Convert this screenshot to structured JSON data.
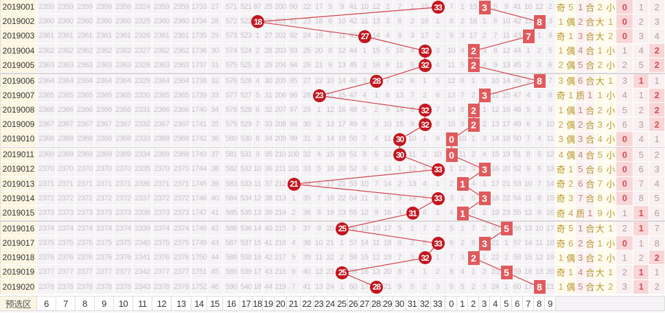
{
  "colors": {
    "ball": "#c4161f",
    "digit_hit": "#e05a5c",
    "line": "#d2404c",
    "miss_text": "#cbc2cb"
  },
  "num_cols": [
    "6",
    "7",
    "8",
    "9",
    "10",
    "11",
    "12",
    "13",
    "14",
    "15",
    "16",
    "17",
    "18",
    "19",
    "20",
    "21",
    "22",
    "23",
    "24",
    "25",
    "26",
    "27",
    "28",
    "29",
    "30",
    "31",
    "32",
    "33"
  ],
  "digit_cols": [
    "0",
    "1",
    "2",
    "3",
    "4",
    "5",
    "6",
    "7",
    "8",
    "9"
  ],
  "rows": [
    {
      "issue": "2019001",
      "hit": "33",
      "n": [
        "2359",
        "2359",
        "2359",
        "2359",
        "2359",
        "2324",
        "2359",
        "2359",
        "1733",
        "27",
        "571",
        "521",
        "87",
        "25",
        "200",
        "90",
        "22",
        "17",
        "5",
        "9",
        "41",
        "10",
        "12",
        "2",
        "7",
        "1",
        "15",
        "33"
      ],
      "dhit": "3",
      "d": [
        "7",
        "1",
        "15",
        "3",
        "5",
        "9",
        "41",
        "10",
        "12",
        "2"
      ],
      "s": [
        "奇",
        "5",
        "1",
        "合",
        "2",
        "小"
      ],
      "road": [
        "0",
        "1",
        "2"
      ],
      "rh": 0
    },
    {
      "issue": "2019002",
      "hit": "18",
      "n": [
        "2360",
        "2360",
        "2360",
        "2360",
        "2360",
        "2325",
        "2360",
        "2360",
        "1734",
        "28",
        "572",
        "522",
        "18",
        "26",
        "201",
        "91",
        "23",
        "18",
        "6",
        "10",
        "42",
        "11",
        "13",
        "3",
        "8",
        "2",
        "16",
        "1"
      ],
      "dhit": "8",
      "d": [
        "8",
        "2",
        "16",
        "1",
        "6",
        "10",
        "42",
        "11",
        "8",
        "3"
      ],
      "s": [
        "1",
        "偶",
        "2",
        "合",
        "大",
        "1"
      ],
      "road": [
        "0",
        "2",
        "3"
      ],
      "rh": 0
    },
    {
      "issue": "2019003",
      "hit": "27",
      "n": [
        "2361",
        "2361",
        "2361",
        "2361",
        "2361",
        "2326",
        "2361",
        "2361",
        "1735",
        "29",
        "573",
        "523",
        "1",
        "27",
        "202",
        "92",
        "24",
        "19",
        "7",
        "11",
        "43",
        "27",
        "14",
        "4",
        "9",
        "3",
        "17",
        "2"
      ],
      "dhit": "7",
      "d": [
        "9",
        "3",
        "17",
        "2",
        "7",
        "11",
        "43",
        "7",
        "1",
        "4"
      ],
      "s": [
        "奇",
        "1",
        "3",
        "合",
        "大",
        "2"
      ],
      "road": [
        "0",
        "3",
        "4"
      ],
      "rh": 0
    },
    {
      "issue": "2019004",
      "hit": "32",
      "n": [
        "2362",
        "2362",
        "2362",
        "2362",
        "2362",
        "2327",
        "2362",
        "2362",
        "1736",
        "30",
        "574",
        "524",
        "2",
        "28",
        "203",
        "93",
        "25",
        "20",
        "8",
        "12",
        "44",
        "1",
        "15",
        "5",
        "10",
        "4",
        "32",
        "3"
      ],
      "dhit": "2",
      "d": [
        "10",
        "4",
        "2",
        "3",
        "8",
        "12",
        "44",
        "1",
        "2",
        "5"
      ],
      "s": [
        "1",
        "偶",
        "4",
        "合",
        "1",
        "小"
      ],
      "road": [
        "1",
        "4",
        "2"
      ],
      "rh": 2
    },
    {
      "issue": "2019005",
      "hit": "32",
      "n": [
        "2363",
        "2363",
        "2363",
        "2363",
        "2363",
        "2328",
        "2363",
        "2363",
        "1737",
        "31",
        "575",
        "525",
        "3",
        "29",
        "204",
        "94",
        "26",
        "21",
        "9",
        "13",
        "45",
        "2",
        "16",
        "6",
        "11",
        "5",
        "32",
        "4"
      ],
      "dhit": "2",
      "d": [
        "11",
        "5",
        "2",
        "4",
        "9",
        "13",
        "45",
        "2",
        "3",
        "6"
      ],
      "s": [
        "2",
        "偶",
        "5",
        "合",
        "2",
        "小"
      ],
      "road": [
        "2",
        "5",
        "2"
      ],
      "rh": 2
    },
    {
      "issue": "2019006",
      "hit": "28",
      "n": [
        "2364",
        "2364",
        "2364",
        "2364",
        "2364",
        "2329",
        "2364",
        "2364",
        "1738",
        "32",
        "576",
        "526",
        "4",
        "30",
        "205",
        "95",
        "27",
        "22",
        "10",
        "14",
        "46",
        "3",
        "28",
        "7",
        "12",
        "6",
        "1",
        "5"
      ],
      "dhit": "8",
      "d": [
        "12",
        "6",
        "1",
        "5",
        "10",
        "14",
        "46",
        "3",
        "8",
        "7"
      ],
      "s": [
        "3",
        "偶",
        "6",
        "合",
        "大",
        "1"
      ],
      "road": [
        "3",
        "1",
        "1"
      ],
      "rh": 1
    },
    {
      "issue": "2019007",
      "hit": "23",
      "n": [
        "2365",
        "2365",
        "2365",
        "2365",
        "2365",
        "2330",
        "2365",
        "2365",
        "1739",
        "33",
        "577",
        "527",
        "5",
        "31",
        "206",
        "96",
        "28",
        "23",
        "11",
        "15",
        "47",
        "4",
        "1",
        "8",
        "13",
        "7",
        "2",
        "6"
      ],
      "dhit": "3",
      "d": [
        "13",
        "7",
        "2",
        "3",
        "11",
        "15",
        "47",
        "4",
        "1",
        "8"
      ],
      "s": [
        "奇",
        "1",
        "质",
        "1",
        "1",
        "小"
      ],
      "road": [
        "4",
        "1",
        "2"
      ],
      "rh": 2
    },
    {
      "issue": "2019008",
      "hit": "32",
      "n": [
        "2366",
        "2366",
        "2366",
        "2366",
        "2366",
        "2331",
        "2366",
        "2366",
        "1740",
        "34",
        "578",
        "528",
        "6",
        "32",
        "207",
        "97",
        "29",
        "1",
        "12",
        "16",
        "48",
        "5",
        "2",
        "9",
        "14",
        "8",
        "32",
        "7"
      ],
      "dhit": "2",
      "d": [
        "14",
        "8",
        "2",
        "1",
        "12",
        "16",
        "48",
        "5",
        "2",
        "9"
      ],
      "s": [
        "1",
        "偶",
        "1",
        "合",
        "2",
        "小"
      ],
      "road": [
        "5",
        "2",
        "2"
      ],
      "rh": 2
    },
    {
      "issue": "2019009",
      "hit": "32",
      "n": [
        "2367",
        "2367",
        "2367",
        "2367",
        "2367",
        "2332",
        "2367",
        "2367",
        "1741",
        "35",
        "579",
        "529",
        "7",
        "33",
        "208",
        "98",
        "30",
        "2",
        "13",
        "17",
        "49",
        "6",
        "3",
        "10",
        "15",
        "9",
        "32",
        "8"
      ],
      "dhit": "2",
      "d": [
        "15",
        "9",
        "2",
        "2",
        "13",
        "17",
        "49",
        "6",
        "3",
        "10"
      ],
      "s": [
        "2",
        "偶",
        "2",
        "合",
        "3",
        "小"
      ],
      "road": [
        "6",
        "3",
        "2"
      ],
      "rh": 2
    },
    {
      "issue": "2019010",
      "hit": "30",
      "n": [
        "2368",
        "2368",
        "2368",
        "2368",
        "2368",
        "2333",
        "2368",
        "2368",
        "1742",
        "36",
        "580",
        "530",
        "8",
        "34",
        "209",
        "99",
        "31",
        "3",
        "14",
        "18",
        "50",
        "7",
        "4",
        "11",
        "30",
        "10",
        "1",
        "9"
      ],
      "dhit": "0",
      "d": [
        "0",
        "10",
        "1",
        "3",
        "14",
        "18",
        "50",
        "7",
        "4",
        "11"
      ],
      "s": [
        "3",
        "偶",
        "3",
        "合",
        "4",
        "小"
      ],
      "road": [
        "0",
        "4",
        "1"
      ],
      "rh": 0
    },
    {
      "issue": "2019011",
      "hit": "30",
      "n": [
        "2369",
        "2369",
        "2369",
        "2369",
        "2369",
        "2334",
        "2369",
        "2369",
        "1743",
        "37",
        "581",
        "531",
        "9",
        "35",
        "210",
        "100",
        "32",
        "4",
        "15",
        "19",
        "51",
        "8",
        "5",
        "12",
        "30",
        "11",
        "2",
        "10"
      ],
      "dhit": "0",
      "d": [
        "0",
        "11",
        "2",
        "4",
        "15",
        "19",
        "51",
        "8",
        "5",
        "12"
      ],
      "s": [
        "4",
        "偶",
        "4",
        "合",
        "5",
        "小"
      ],
      "road": [
        "0",
        "5",
        "2"
      ],
      "rh": 0
    },
    {
      "issue": "2019012",
      "hit": "33",
      "n": [
        "2370",
        "2370",
        "2370",
        "2370",
        "2370",
        "2335",
        "2370",
        "2370",
        "1744",
        "38",
        "582",
        "532",
        "10",
        "36",
        "211",
        "101",
        "33",
        "5",
        "16",
        "20",
        "52",
        "9",
        "6",
        "13",
        "1",
        "12",
        "3",
        "33"
      ],
      "dhit": "3",
      "d": [
        "1",
        "12",
        "3",
        "3",
        "16",
        "20",
        "52",
        "9",
        "6",
        "13"
      ],
      "s": [
        "奇",
        "1",
        "5",
        "合",
        "6",
        "小"
      ],
      "road": [
        "0",
        "6",
        "3"
      ],
      "rh": 0
    },
    {
      "issue": "2019013",
      "hit": "21",
      "n": [
        "2371",
        "2371",
        "2371",
        "2371",
        "2371",
        "2336",
        "2371",
        "2371",
        "1745",
        "39",
        "583",
        "533",
        "11",
        "37",
        "212",
        "21",
        "34",
        "6",
        "17",
        "21",
        "53",
        "10",
        "7",
        "14",
        "2",
        "13",
        "4",
        "1"
      ],
      "dhit": "1",
      "d": [
        "2",
        "1",
        "4",
        "1",
        "17",
        "21",
        "53",
        "10",
        "7",
        "14"
      ],
      "s": [
        "奇",
        "2",
        "6",
        "合",
        "7",
        "小"
      ],
      "road": [
        "0",
        "7",
        "4"
      ],
      "rh": 0
    },
    {
      "issue": "2019014",
      "hit": "33",
      "n": [
        "2372",
        "2372",
        "2372",
        "2372",
        "2372",
        "2337",
        "2372",
        "2372",
        "1746",
        "40",
        "584",
        "534",
        "12",
        "38",
        "213",
        "1",
        "35",
        "7",
        "18",
        "22",
        "54",
        "11",
        "8",
        "15",
        "3",
        "14",
        "5",
        "33"
      ],
      "dhit": "3",
      "d": [
        "3",
        "1",
        "5",
        "3",
        "18",
        "22",
        "54",
        "11",
        "8",
        "15"
      ],
      "s": [
        "奇",
        "3",
        "7",
        "合",
        "8",
        "小"
      ],
      "road": [
        "0",
        "8",
        "5"
      ],
      "rh": 0
    },
    {
      "issue": "2019015",
      "hit": "31",
      "n": [
        "2373",
        "2373",
        "2373",
        "2373",
        "2373",
        "2338",
        "2373",
        "2373",
        "1747",
        "41",
        "585",
        "535",
        "13",
        "39",
        "214",
        "2",
        "36",
        "8",
        "19",
        "23",
        "55",
        "12",
        "9",
        "16",
        "4",
        "31",
        "6",
        "1"
      ],
      "dhit": "1",
      "d": [
        "4",
        "1",
        "6",
        "1",
        "19",
        "23",
        "55",
        "12",
        "9",
        "16"
      ],
      "s": [
        "奇",
        "4",
        "质",
        "1",
        "9",
        "小"
      ],
      "road": [
        "1",
        "1",
        "6"
      ],
      "rh": 1
    },
    {
      "issue": "2019016",
      "hit": "25",
      "n": [
        "2374",
        "2374",
        "2374",
        "2374",
        "2374",
        "2339",
        "2374",
        "2374",
        "1748",
        "42",
        "586",
        "536",
        "14",
        "40",
        "215",
        "3",
        "37",
        "9",
        "20",
        "25",
        "56",
        "13",
        "10",
        "17",
        "5",
        "1",
        "7",
        "2"
      ],
      "dhit": "5",
      "d": [
        "5",
        "1",
        "7",
        "2",
        "20",
        "5",
        "56",
        "13",
        "10",
        "17"
      ],
      "s": [
        "奇",
        "5",
        "1",
        "合",
        "大",
        "1"
      ],
      "road": [
        "2",
        "1",
        "7"
      ],
      "rh": 1
    },
    {
      "issue": "2019017",
      "hit": "33",
      "n": [
        "2375",
        "2375",
        "2375",
        "2375",
        "2375",
        "2340",
        "2375",
        "2375",
        "1749",
        "43",
        "587",
        "537",
        "15",
        "41",
        "216",
        "4",
        "38",
        "10",
        "21",
        "1",
        "57",
        "14",
        "11",
        "18",
        "6",
        "2",
        "8",
        "33"
      ],
      "dhit": "3",
      "d": [
        "6",
        "2",
        "8",
        "3",
        "21",
        "1",
        "57",
        "14",
        "11",
        "18"
      ],
      "s": [
        "奇",
        "6",
        "2",
        "合",
        "1",
        "小"
      ],
      "road": [
        "0",
        "1",
        "8"
      ],
      "rh": 0
    },
    {
      "issue": "2019018",
      "hit": "32",
      "n": [
        "2376",
        "2376",
        "2376",
        "2376",
        "2376",
        "2341",
        "2376",
        "2376",
        "1750",
        "44",
        "588",
        "538",
        "16",
        "42",
        "217",
        "5",
        "39",
        "11",
        "22",
        "2",
        "58",
        "15",
        "12",
        "19",
        "7",
        "3",
        "32",
        "1"
      ],
      "dhit": "2",
      "d": [
        "7",
        "3",
        "2",
        "1",
        "22",
        "2",
        "58",
        "15",
        "12",
        "19"
      ],
      "s": [
        "1",
        "偶",
        "3",
        "合",
        "2",
        "小"
      ],
      "road": [
        "1",
        "2",
        "2"
      ],
      "rh": 2
    },
    {
      "issue": "2019019",
      "hit": "25",
      "n": [
        "2377",
        "2377",
        "2377",
        "2377",
        "2377",
        "2342",
        "2377",
        "2377",
        "1751",
        "45",
        "589",
        "539",
        "17",
        "43",
        "218",
        "6",
        "40",
        "12",
        "23",
        "25",
        "59",
        "16",
        "13",
        "20",
        "8",
        "4",
        "1",
        "2"
      ],
      "dhit": "5",
      "d": [
        "8",
        "4",
        "1",
        "2",
        "23",
        "5",
        "59",
        "16",
        "13",
        "20"
      ],
      "s": [
        "奇",
        "1",
        "4",
        "合",
        "大",
        "1"
      ],
      "road": [
        "2",
        "1",
        "1"
      ],
      "rh": 1
    },
    {
      "issue": "2019020",
      "hit": "28",
      "n": [
        "2378",
        "2378",
        "2378",
        "2378",
        "2378",
        "2343",
        "2378",
        "2378",
        "1752",
        "46",
        "590",
        "540",
        "18",
        "44",
        "219",
        "7",
        "41",
        "13",
        "24",
        "1",
        "60",
        "17",
        "28",
        "21",
        "9",
        "5",
        "2",
        "3"
      ],
      "dhit": "8",
      "d": [
        "9",
        "5",
        "2",
        "3",
        "24",
        "1",
        "60",
        "17",
        "8",
        "21"
      ],
      "s": [
        "1",
        "偶",
        "5",
        "合",
        "大",
        "2"
      ],
      "road": [
        "3",
        "1",
        "2"
      ],
      "rh": 1
    }
  ],
  "footer": {
    "label": "预选区"
  }
}
